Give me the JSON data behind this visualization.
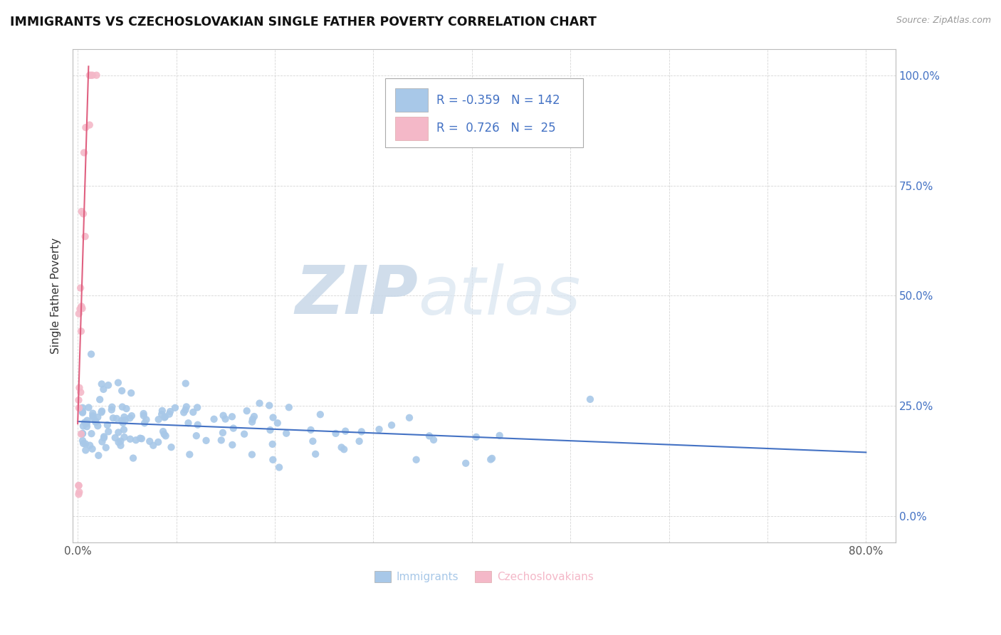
{
  "title": "IMMIGRANTS VS CZECHOSLOVAKIAN SINGLE FATHER POVERTY CORRELATION CHART",
  "source": "Source: ZipAtlas.com",
  "xlabel_immigrants": "Immigrants",
  "xlabel_czechoslovakians": "Czechoslovakians",
  "ylabel": "Single Father Poverty",
  "watermark_zip": "ZIP",
  "watermark_atlas": "atlas",
  "xlim": [
    -0.005,
    0.83
  ],
  "ylim": [
    -0.06,
    1.06
  ],
  "xticks": [
    0.0,
    0.1,
    0.2,
    0.3,
    0.4,
    0.5,
    0.6,
    0.7,
    0.8
  ],
  "xtick_labels": [
    "0.0%",
    "",
    "",
    "",
    "",
    "",
    "",
    "",
    "80.0%"
  ],
  "ytick_labels_right": [
    "0.0%",
    "25.0%",
    "50.0%",
    "75.0%",
    "100.0%"
  ],
  "yticks": [
    0.0,
    0.25,
    0.5,
    0.75,
    1.0
  ],
  "blue_color": "#a8c8e8",
  "blue_line_color": "#4472c4",
  "pink_color": "#f4b8c8",
  "pink_line_color": "#e06080",
  "legend_blue_R": "-0.359",
  "legend_blue_N": "142",
  "legend_pink_R": "0.726",
  "legend_pink_N": "25",
  "blue_line_x0": 0.0,
  "blue_line_x1": 0.8,
  "blue_line_y0": 0.215,
  "blue_line_y1": 0.145,
  "pink_line_x0": 0.0,
  "pink_line_x1": 0.011,
  "pink_line_y0": 0.21,
  "pink_line_y1": 1.02
}
